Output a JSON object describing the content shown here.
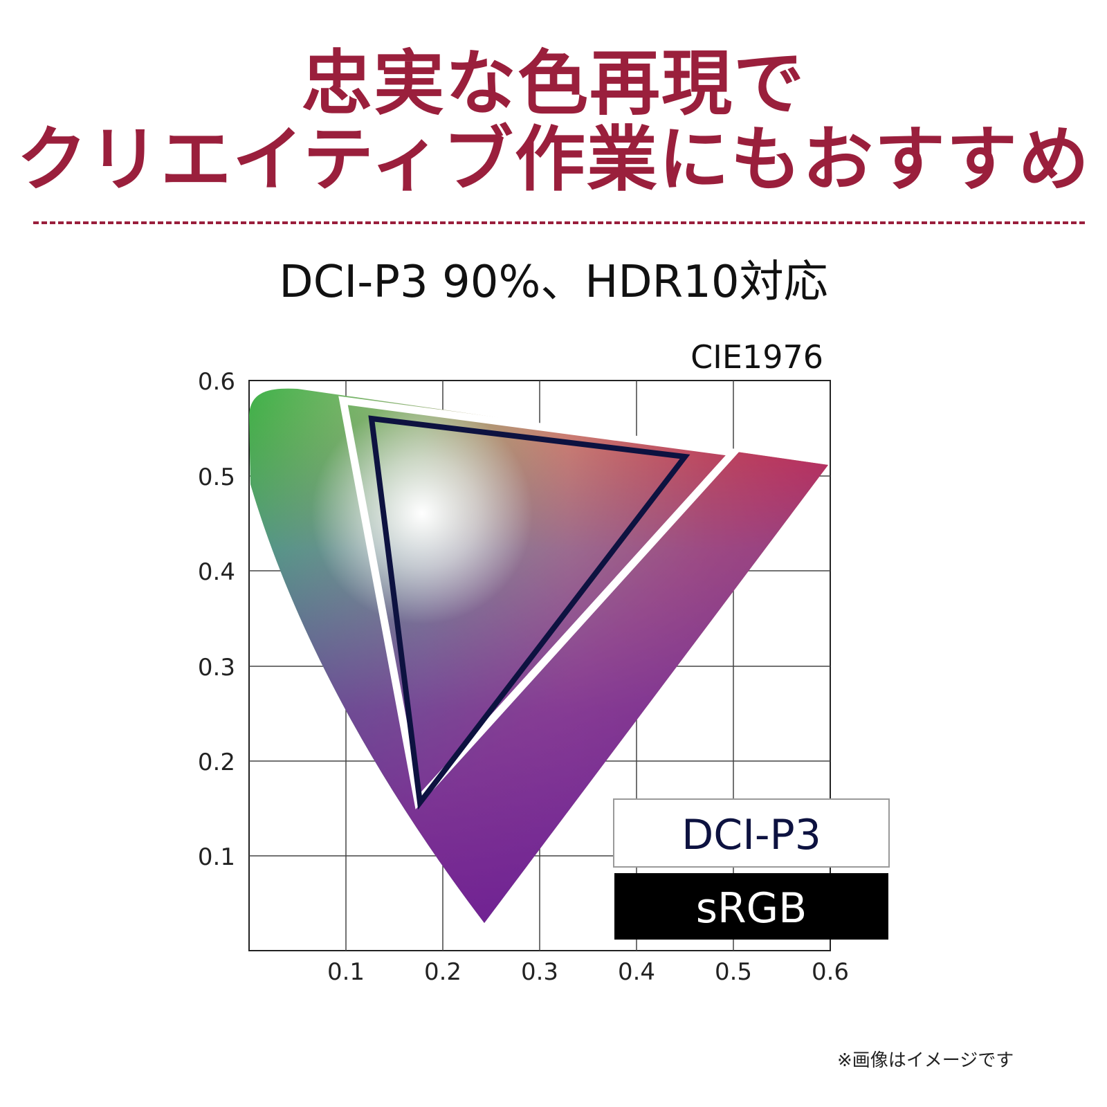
{
  "headline": {
    "line1": "忠実な色再現で",
    "line2": "クリエイティブ作業にもおすすめ"
  },
  "subtitle": "DCI-P3 90%、HDR10対応",
  "diagram": {
    "label": "CIE1976",
    "x_ticks": [
      "0.1",
      "0.2",
      "0.3",
      "0.4",
      "0.5",
      "0.6"
    ],
    "y_ticks": [
      "0.6",
      "0.5",
      "0.4",
      "0.3",
      "0.2",
      "0.1"
    ],
    "legend": {
      "dci_p3": "DCI-P3",
      "srgb": "sRGB"
    }
  },
  "footnote": "※画像はイメージです",
  "colors": {
    "headline": "#9a1f3c",
    "divider": "#9a1f3c",
    "srgb_outline": "#0d1240",
    "dci_outline": "#ffffff"
  }
}
